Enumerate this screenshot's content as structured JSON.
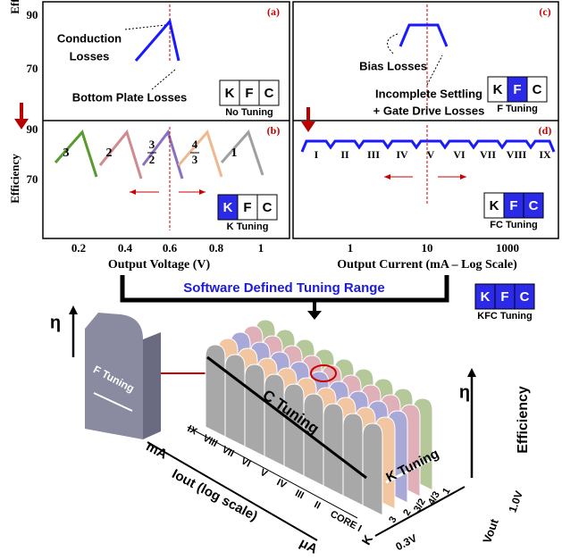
{
  "top": {
    "y_axis_label": "Efficiency",
    "kfc": [
      "K",
      "F",
      "C"
    ],
    "a": {
      "label": "(a)",
      "yticks": [
        "90",
        "70"
      ],
      "annotations": [
        "Conduction",
        "Losses",
        "Bottom Plate Losses"
      ],
      "tuning": "No Tuning"
    },
    "b": {
      "label": "(b)",
      "yticks": [
        "90",
        "70"
      ],
      "ratios": [
        {
          "num": "3"
        },
        {
          "num": "2"
        },
        {
          "num": "3",
          "den": "2"
        },
        {
          "num": "4",
          "den": "3"
        },
        {
          "num": "1"
        }
      ],
      "tuning": "K Tuning"
    },
    "x_left": {
      "ticks": [
        "0.2",
        "0.4",
        "0.6",
        "0.8",
        "1"
      ],
      "label": "Output Voltage (V)"
    },
    "c": {
      "label": "(c)",
      "annotations": [
        "Bias Losses",
        "Incomplete Settling",
        "+ Gate Drive Losses"
      ],
      "tuning": "F Tuning"
    },
    "d": {
      "label": "(d)",
      "regions": [
        "I",
        "II",
        "III",
        "IV",
        "V",
        "VI",
        "VII",
        "VIII",
        "IX"
      ],
      "tuning": "FC Tuning"
    },
    "x_right": {
      "ticks": [
        "1",
        "10",
        "1000"
      ],
      "label": "Output Current (mA – Log Scale)"
    }
  },
  "middle": {
    "title": "Software Defined Tuning Range",
    "tuning": "KFC Tuning"
  },
  "bottom": {
    "eta": "η",
    "f_tuning": "F Tuning",
    "c_tuning": "C Tuning",
    "k_tuning": "K Tuning",
    "efficiency": "Efficiency",
    "regions": [
      "IX",
      "VIII",
      "VII",
      "VI",
      "V",
      "IV",
      "III",
      "II",
      "CORE I"
    ],
    "current_high": "mA",
    "current_axis": "Iout (log scale)",
    "current_low": "μA",
    "k_axis": "K",
    "ratios": [
      "3",
      "2",
      "3/2",
      "4/3",
      "1"
    ],
    "v_low": "0.3V",
    "v_axis": "Vout",
    "v_high": "1.0V"
  }
}
